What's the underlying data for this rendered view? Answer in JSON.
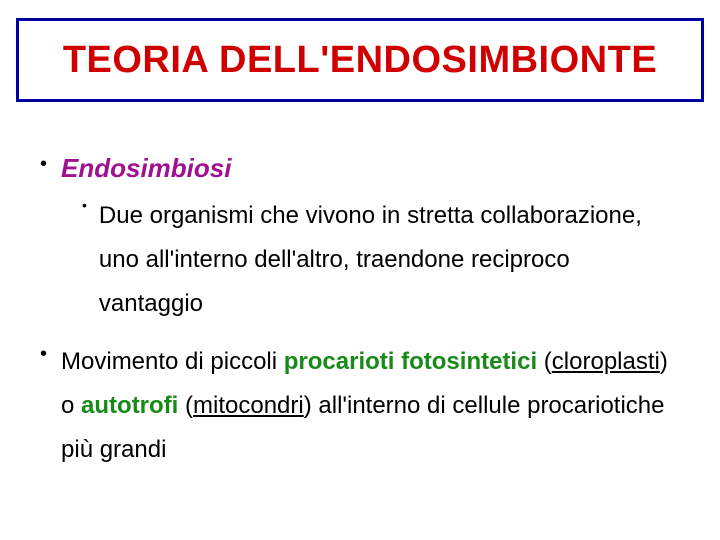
{
  "colors": {
    "title_border": "#0000a0",
    "title_text": "#d00000",
    "body_text": "#000000",
    "accent_green": "#178a17",
    "accent_purple": "#a01090",
    "background": "#ffffff"
  },
  "title": "TEORIA DELL'ENDOSIMBIONTE",
  "bullets": {
    "b1": {
      "heading": "Endosimbiosi",
      "sub": {
        "line": "Due organismi che vivono in stretta collaborazione, uno all'interno dell'altro, traendone reciproco vantaggio"
      }
    },
    "b2": {
      "t1": "Movimento di piccoli ",
      "green1": "procarioti fotosintetici",
      "t2": " (",
      "u1": "cloroplasti",
      "t3": ") o ",
      "green2": "autotrofi",
      "t4": " (",
      "u2": "mitocondri",
      "t5": ") all'interno di cellule procariotiche più grandi"
    }
  },
  "typography": {
    "title_fontsize": 38,
    "l1_fontsize": 26,
    "l2_fontsize": 24,
    "font_family": "Comic Sans MS"
  }
}
